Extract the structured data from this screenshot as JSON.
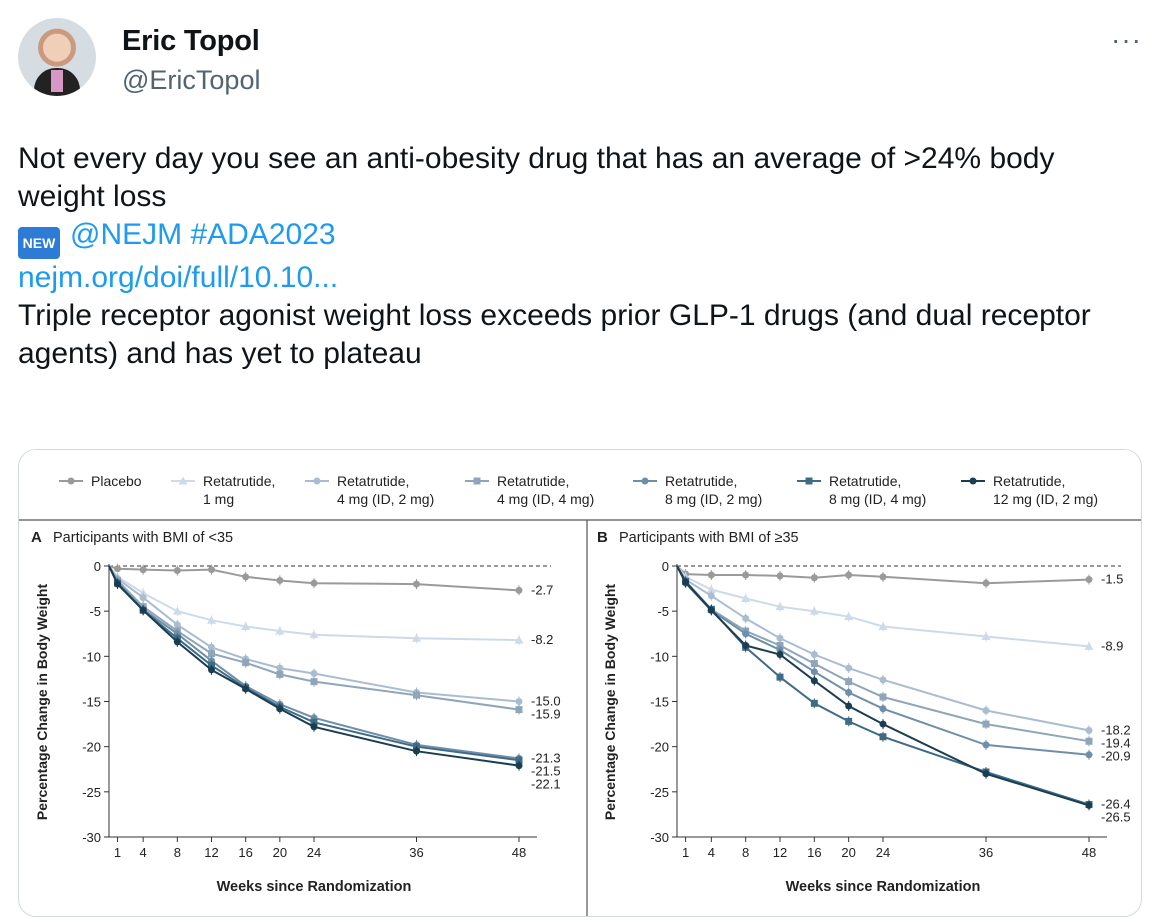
{
  "author": {
    "name": "Eric Topol",
    "handle": "@EricTopol"
  },
  "more_icon": "···",
  "tweet": {
    "line1": "Not every day you see an anti-obesity drug that has an average of >24% body weight loss",
    "new_badge": "NEW",
    "mentions": "@NEJM #ADA2023",
    "link": "nejm.org/doi/full/10.10...",
    "line2": "Triple receptor agonist weight loss exceeds prior GLP-1 drugs (and dual receptor agents) and has yet to plateau"
  },
  "chart_data": [
    {
      "type": "line",
      "title": "Participants with BMI of <35",
      "panel_label": "A",
      "xlabel": "Weeks since Randomization",
      "ylabel": "Percentage Change in Body Weight",
      "x": [
        0,
        1,
        4,
        8,
        12,
        16,
        20,
        24,
        36,
        48
      ],
      "xticks": [
        1,
        4,
        8,
        12,
        16,
        20,
        24,
        36,
        48
      ],
      "ylim": [
        -30,
        0
      ],
      "yticks": [
        0,
        -5,
        -10,
        -15,
        -20,
        -25,
        -30
      ],
      "series": [
        {
          "name": "Placebo",
          "color": "#9a9a9a",
          "marker": "circle",
          "end_label": "-2.7",
          "values": [
            0,
            -0.3,
            -0.4,
            -0.5,
            -0.4,
            -1.2,
            -1.6,
            -1.9,
            -2.0,
            -2.7
          ]
        },
        {
          "name": "Retatrutide, 1 mg",
          "color": "#cddbe8",
          "marker": "triangle",
          "end_label": "-8.2",
          "values": [
            0,
            -1.2,
            -3.0,
            -5.0,
            -6.0,
            -6.7,
            -7.2,
            -7.6,
            -8.0,
            -8.2
          ]
        },
        {
          "name": "Retatrutide, 4 mg (ID, 2 mg)",
          "color": "#aabdd0",
          "marker": "circle",
          "end_label": "-15.0",
          "values": [
            0,
            -1.4,
            -3.5,
            -6.5,
            -9.0,
            -10.3,
            -11.3,
            -11.9,
            -14.0,
            -15.0
          ]
        },
        {
          "name": "Retatrutide, 4 mg (ID, 4 mg)",
          "color": "#8ea5ba",
          "marker": "square",
          "end_label": "-15.9",
          "values": [
            0,
            -1.6,
            -4.5,
            -7.2,
            -9.7,
            -10.7,
            -12.0,
            -12.8,
            -14.3,
            -15.9
          ]
        },
        {
          "name": "Retatrutide, 8 mg (ID, 2 mg)",
          "color": "#6f8fa8",
          "marker": "circle",
          "end_label": "-21.3",
          "values": [
            0,
            -1.8,
            -4.8,
            -7.5,
            -10.5,
            -13.3,
            -15.3,
            -16.8,
            -19.8,
            -21.3
          ]
        },
        {
          "name": "Retatrutide, 8 mg (ID, 4 mg)",
          "color": "#3f6b86",
          "marker": "square",
          "end_label": "-21.5",
          "values": [
            0,
            -1.9,
            -4.9,
            -8.0,
            -11.0,
            -13.5,
            -15.6,
            -17.3,
            -20.0,
            -21.5
          ]
        },
        {
          "name": "Retatrutide, 12 mg (ID, 2 mg)",
          "color": "#1b3d52",
          "marker": "circle",
          "end_label": "-22.1",
          "values": [
            0,
            -2.0,
            -4.9,
            -8.4,
            -11.5,
            -13.6,
            -15.8,
            -17.8,
            -20.5,
            -22.1
          ]
        }
      ]
    },
    {
      "type": "line",
      "title": "Participants with BMI of ≥35",
      "panel_label": "B",
      "xlabel": "Weeks since Randomization",
      "ylabel": "Percentage Change in Body Weight",
      "x": [
        0,
        1,
        4,
        8,
        12,
        16,
        20,
        24,
        36,
        48
      ],
      "xticks": [
        1,
        4,
        8,
        12,
        16,
        20,
        24,
        36,
        48
      ],
      "ylim": [
        -30,
        0
      ],
      "yticks": [
        0,
        -5,
        -10,
        -15,
        -20,
        -25,
        -30
      ],
      "series": [
        {
          "name": "Placebo",
          "color": "#9a9a9a",
          "marker": "circle",
          "end_label": "-1.5",
          "values": [
            0,
            -0.9,
            -1.0,
            -1.0,
            -1.1,
            -1.3,
            -1.0,
            -1.2,
            -1.9,
            -1.5
          ]
        },
        {
          "name": "Retatrutide, 1 mg",
          "color": "#cddbe8",
          "marker": "triangle",
          "end_label": "-8.9",
          "values": [
            0,
            -1.2,
            -2.6,
            -3.6,
            -4.5,
            -5.0,
            -5.6,
            -6.7,
            -7.8,
            -8.9
          ]
        },
        {
          "name": "Retatrutide, 4 mg (ID, 2 mg)",
          "color": "#aabdd0",
          "marker": "circle",
          "end_label": "-18.2",
          "values": [
            0,
            -1.5,
            -3.3,
            -5.8,
            -8.0,
            -9.8,
            -11.3,
            -12.6,
            -16.0,
            -18.2
          ]
        },
        {
          "name": "Retatrutide, 4 mg (ID, 4 mg)",
          "color": "#8ea5ba",
          "marker": "square",
          "end_label": "-19.4",
          "values": [
            0,
            -1.7,
            -4.8,
            -7.2,
            -8.8,
            -10.8,
            -12.8,
            -14.5,
            -17.5,
            -19.4
          ]
        },
        {
          "name": "Retatrutide, 8 mg (ID, 2 mg)",
          "color": "#6f8fa8",
          "marker": "circle",
          "end_label": "-20.9",
          "values": [
            0,
            -1.9,
            -4.9,
            -7.5,
            -9.3,
            -11.7,
            -14.0,
            -15.8,
            -19.8,
            -20.9
          ]
        },
        {
          "name": "Retatrutide, 8 mg (ID, 4 mg)",
          "color": "#3f6b86",
          "marker": "square",
          "end_label": "-26.4",
          "values": [
            0,
            -1.7,
            -4.8,
            -9.0,
            -12.3,
            -15.2,
            -17.2,
            -18.9,
            -22.8,
            -26.4
          ]
        },
        {
          "name": "Retatrutide, 12 mg (ID, 2 mg)",
          "color": "#1b3d52",
          "marker": "circle",
          "end_label": "-26.5",
          "values": [
            0,
            -1.8,
            -4.9,
            -8.8,
            -9.8,
            -12.7,
            -15.5,
            -17.5,
            -23.0,
            -26.5
          ]
        }
      ]
    }
  ],
  "legend": [
    {
      "line1": "Placebo",
      "line2": "",
      "color": "#9a9a9a",
      "marker": "circle"
    },
    {
      "line1": "Retatrutide,",
      "line2": "1 mg",
      "color": "#cddbe8",
      "marker": "triangle"
    },
    {
      "line1": "Retatrutide,",
      "line2": "4 mg (ID, 2 mg)",
      "color": "#aabdd0",
      "marker": "circle"
    },
    {
      "line1": "Retatrutide,",
      "line2": "4 mg (ID, 4 mg)",
      "color": "#8ea5ba",
      "marker": "square"
    },
    {
      "line1": "Retatrutide,",
      "line2": "8 mg (ID, 2 mg)",
      "color": "#6f8fa8",
      "marker": "circle"
    },
    {
      "line1": "Retatrutide,",
      "line2": "8 mg (ID, 4 mg)",
      "color": "#3f6b86",
      "marker": "square"
    },
    {
      "line1": "Retatrutide,",
      "line2": "12 mg (ID, 2 mg)",
      "color": "#1b3d52",
      "marker": "circle"
    }
  ]
}
